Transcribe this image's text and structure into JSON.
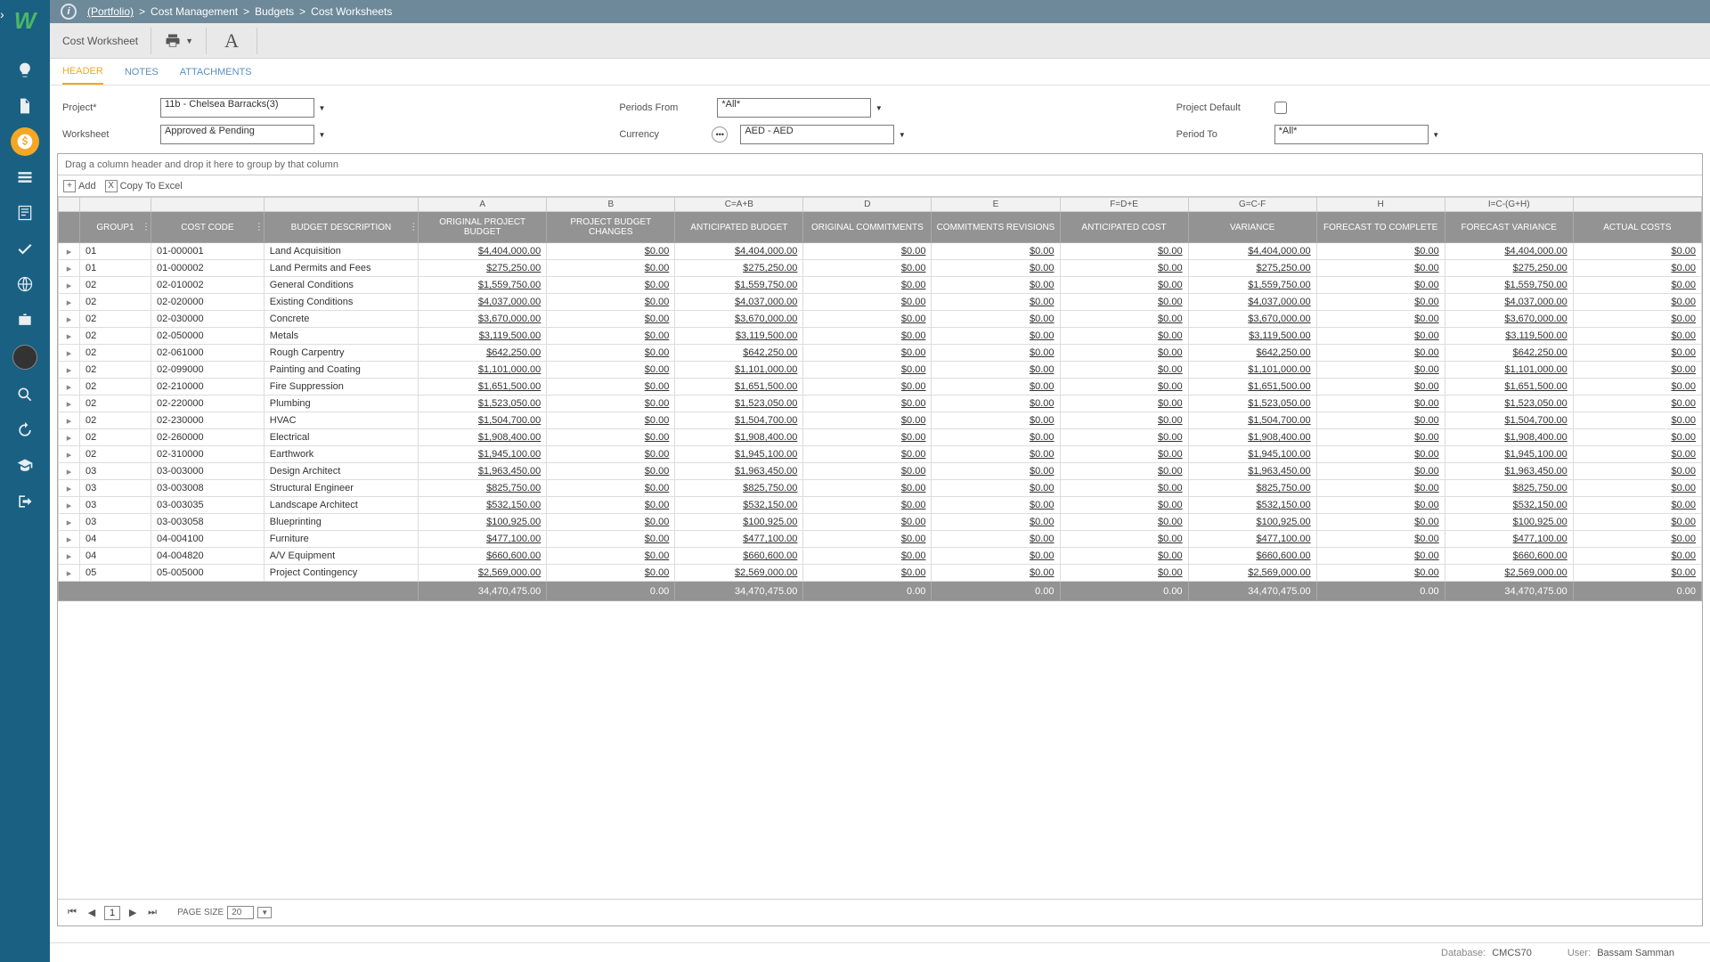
{
  "breadcrumb": {
    "portfolio": "(Portfolio)",
    "path": [
      "Cost Management",
      "Budgets",
      "Cost Worksheets"
    ]
  },
  "toolbar": {
    "title": "Cost Worksheet"
  },
  "tabs": {
    "header": "HEADER",
    "notes": "NOTES",
    "attachments": "ATTACHMENTS"
  },
  "filters": {
    "project_label": "Project*",
    "project_value": "11b - Chelsea Barracks(3)",
    "worksheet_label": "Worksheet",
    "worksheet_value": "Approved & Pending",
    "periods_from_label": "Periods From",
    "periods_from_value": "*All*",
    "currency_label": "Currency",
    "currency_value": "AED - AED",
    "project_default_label": "Project Default",
    "period_to_label": "Period To",
    "period_to_value": "*All*"
  },
  "grid": {
    "group_hint": "Drag a column header and drop it here to group by that column",
    "add": "Add",
    "copy": "Copy To Excel",
    "letters": [
      "",
      "",
      "",
      "A",
      "B",
      "C=A+B",
      "D",
      "E",
      "F=D+E",
      "G=C-F",
      "H",
      "I=C-(G+H)",
      ""
    ],
    "headers": [
      "",
      "GROUP1",
      "COST CODE",
      "BUDGET DESCRIPTION",
      "ORIGINAL PROJECT BUDGET",
      "PROJECT BUDGET CHANGES",
      "ANTICIPATED BUDGET",
      "ORIGINAL COMMITMENTS",
      "COMMITMENTS REVISIONS",
      "ANTICIPATED COST",
      "VARIANCE",
      "FORECAST TO COMPLETE",
      "FORECAST VARIANCE",
      "ACTUAL COSTS"
    ],
    "rows": [
      {
        "g": "01",
        "cc": "01-000001",
        "bd": "Land Acquisition",
        "v": [
          "$4,404,000.00",
          "$0.00",
          "$4,404,000.00",
          "$0.00",
          "$0.00",
          "$0.00",
          "$4,404,000.00",
          "$0.00",
          "$4,404,000.00",
          "$0.00"
        ]
      },
      {
        "g": "01",
        "cc": "01-000002",
        "bd": "Land Permits and Fees",
        "v": [
          "$275,250.00",
          "$0.00",
          "$275,250.00",
          "$0.00",
          "$0.00",
          "$0.00",
          "$275,250.00",
          "$0.00",
          "$275,250.00",
          "$0.00"
        ]
      },
      {
        "g": "02",
        "cc": "02-010002",
        "bd": "General Conditions",
        "v": [
          "$1,559,750.00",
          "$0.00",
          "$1,559,750.00",
          "$0.00",
          "$0.00",
          "$0.00",
          "$1,559,750.00",
          "$0.00",
          "$1,559,750.00",
          "$0.00"
        ]
      },
      {
        "g": "02",
        "cc": "02-020000",
        "bd": "Existing Conditions",
        "v": [
          "$4,037,000.00",
          "$0.00",
          "$4,037,000.00",
          "$0.00",
          "$0.00",
          "$0.00",
          "$4,037,000.00",
          "$0.00",
          "$4,037,000.00",
          "$0.00"
        ]
      },
      {
        "g": "02",
        "cc": "02-030000",
        "bd": "Concrete",
        "v": [
          "$3,670,000.00",
          "$0.00",
          "$3,670,000.00",
          "$0.00",
          "$0.00",
          "$0.00",
          "$3,670,000.00",
          "$0.00",
          "$3,670,000.00",
          "$0.00"
        ]
      },
      {
        "g": "02",
        "cc": "02-050000",
        "bd": "Metals",
        "v": [
          "$3,119,500.00",
          "$0.00",
          "$3,119,500.00",
          "$0.00",
          "$0.00",
          "$0.00",
          "$3,119,500.00",
          "$0.00",
          "$3,119,500.00",
          "$0.00"
        ]
      },
      {
        "g": "02",
        "cc": "02-061000",
        "bd": "Rough Carpentry",
        "v": [
          "$642,250.00",
          "$0.00",
          "$642,250.00",
          "$0.00",
          "$0.00",
          "$0.00",
          "$642,250.00",
          "$0.00",
          "$642,250.00",
          "$0.00"
        ]
      },
      {
        "g": "02",
        "cc": "02-099000",
        "bd": "Painting and Coating",
        "v": [
          "$1,101,000.00",
          "$0.00",
          "$1,101,000.00",
          "$0.00",
          "$0.00",
          "$0.00",
          "$1,101,000.00",
          "$0.00",
          "$1,101,000.00",
          "$0.00"
        ]
      },
      {
        "g": "02",
        "cc": "02-210000",
        "bd": "Fire Suppression",
        "v": [
          "$1,651,500.00",
          "$0.00",
          "$1,651,500.00",
          "$0.00",
          "$0.00",
          "$0.00",
          "$1,651,500.00",
          "$0.00",
          "$1,651,500.00",
          "$0.00"
        ]
      },
      {
        "g": "02",
        "cc": "02-220000",
        "bd": "Plumbing",
        "v": [
          "$1,523,050.00",
          "$0.00",
          "$1,523,050.00",
          "$0.00",
          "$0.00",
          "$0.00",
          "$1,523,050.00",
          "$0.00",
          "$1,523,050.00",
          "$0.00"
        ]
      },
      {
        "g": "02",
        "cc": "02-230000",
        "bd": "HVAC",
        "v": [
          "$1,504,700.00",
          "$0.00",
          "$1,504,700.00",
          "$0.00",
          "$0.00",
          "$0.00",
          "$1,504,700.00",
          "$0.00",
          "$1,504,700.00",
          "$0.00"
        ]
      },
      {
        "g": "02",
        "cc": "02-260000",
        "bd": "Electrical",
        "v": [
          "$1,908,400.00",
          "$0.00",
          "$1,908,400.00",
          "$0.00",
          "$0.00",
          "$0.00",
          "$1,908,400.00",
          "$0.00",
          "$1,908,400.00",
          "$0.00"
        ]
      },
      {
        "g": "02",
        "cc": "02-310000",
        "bd": "Earthwork",
        "v": [
          "$1,945,100.00",
          "$0.00",
          "$1,945,100.00",
          "$0.00",
          "$0.00",
          "$0.00",
          "$1,945,100.00",
          "$0.00",
          "$1,945,100.00",
          "$0.00"
        ]
      },
      {
        "g": "03",
        "cc": "03-003000",
        "bd": "Design Architect",
        "v": [
          "$1,963,450.00",
          "$0.00",
          "$1,963,450.00",
          "$0.00",
          "$0.00",
          "$0.00",
          "$1,963,450.00",
          "$0.00",
          "$1,963,450.00",
          "$0.00"
        ]
      },
      {
        "g": "03",
        "cc": "03-003008",
        "bd": "Structural Engineer",
        "v": [
          "$825,750.00",
          "$0.00",
          "$825,750.00",
          "$0.00",
          "$0.00",
          "$0.00",
          "$825,750.00",
          "$0.00",
          "$825,750.00",
          "$0.00"
        ]
      },
      {
        "g": "03",
        "cc": "03-003035",
        "bd": "Landscape Architect",
        "v": [
          "$532,150.00",
          "$0.00",
          "$532,150.00",
          "$0.00",
          "$0.00",
          "$0.00",
          "$532,150.00",
          "$0.00",
          "$532,150.00",
          "$0.00"
        ]
      },
      {
        "g": "03",
        "cc": "03-003058",
        "bd": "Blueprinting",
        "v": [
          "$100,925.00",
          "$0.00",
          "$100,925.00",
          "$0.00",
          "$0.00",
          "$0.00",
          "$100,925.00",
          "$0.00",
          "$100,925.00",
          "$0.00"
        ]
      },
      {
        "g": "04",
        "cc": "04-004100",
        "bd": "Furniture",
        "v": [
          "$477,100.00",
          "$0.00",
          "$477,100.00",
          "$0.00",
          "$0.00",
          "$0.00",
          "$477,100.00",
          "$0.00",
          "$477,100.00",
          "$0.00"
        ]
      },
      {
        "g": "04",
        "cc": "04-004820",
        "bd": "A/V Equipment",
        "v": [
          "$660,600.00",
          "$0.00",
          "$660,600.00",
          "$0.00",
          "$0.00",
          "$0.00",
          "$660,600.00",
          "$0.00",
          "$660,600.00",
          "$0.00"
        ]
      },
      {
        "g": "05",
        "cc": "05-005000",
        "bd": "Project Contingency",
        "v": [
          "$2,569,000.00",
          "$0.00",
          "$2,569,000.00",
          "$0.00",
          "$0.00",
          "$0.00",
          "$2,569,000.00",
          "$0.00",
          "$2,569,000.00",
          "$0.00"
        ]
      }
    ],
    "totals": [
      "34,470,475.00",
      "0.00",
      "34,470,475.00",
      "0.00",
      "0.00",
      "0.00",
      "34,470,475.00",
      "0.00",
      "34,470,475.00",
      "0.00"
    ],
    "pager": {
      "page": "1",
      "page_size_label": "PAGE SIZE",
      "page_size": "20"
    }
  },
  "status": {
    "db_label": "Database:",
    "db": "CMCS70",
    "user_label": "User:",
    "user": "Bassam Samman"
  }
}
